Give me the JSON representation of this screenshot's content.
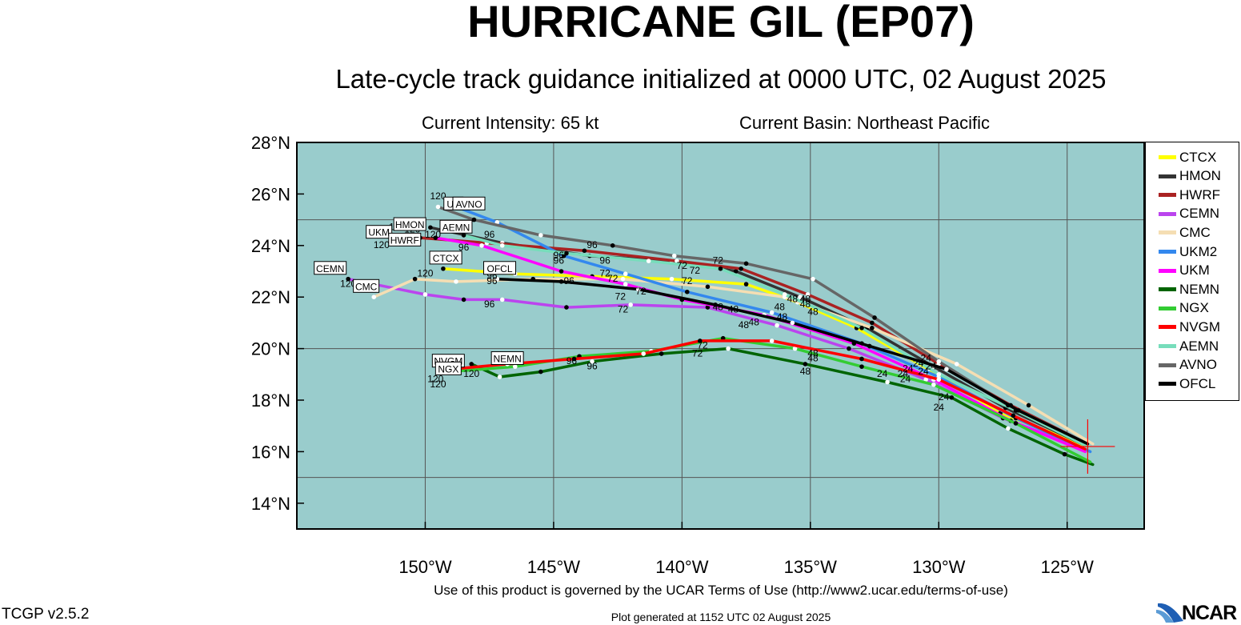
{
  "header": {
    "title": "HURRICANE GIL (EP07)",
    "subtitle": "Late-cycle track guidance initialized at 0000 UTC, 02 August 2025",
    "intensity": "Current Intensity: 65 kt",
    "basin": "Current Basin: Northeast Pacific"
  },
  "map": {
    "lon_range": [
      -155,
      -122
    ],
    "lat_range": [
      13,
      28
    ],
    "lat_ticks": [
      {
        "v": 28,
        "label": "28°N"
      },
      {
        "v": 26,
        "label": "26°N"
      },
      {
        "v": 24,
        "label": "24°N"
      },
      {
        "v": 22,
        "label": "22°N"
      },
      {
        "v": 20,
        "label": "20°N"
      },
      {
        "v": 18,
        "label": "18°N"
      },
      {
        "v": 16,
        "label": "16°N"
      },
      {
        "v": 14,
        "label": "14°N"
      }
    ],
    "lon_ticks": [
      {
        "v": -150,
        "label": "150°W"
      },
      {
        "v": -145,
        "label": "145°W"
      },
      {
        "v": -140,
        "label": "140°W"
      },
      {
        "v": -135,
        "label": "135°W"
      },
      {
        "v": -130,
        "label": "130°W"
      },
      {
        "v": -125,
        "label": "125°W"
      }
    ],
    "grid_lons": [
      -150,
      -145,
      -140,
      -135,
      -130,
      -125
    ],
    "grid_lats": [
      25,
      20,
      15
    ],
    "ocean_color": "#99cccc",
    "storm_position": {
      "lon": -124.2,
      "lat": 16.2
    }
  },
  "chart_data": {
    "type": "map-tracks",
    "series": [
      {
        "name": "CTCX",
        "color": "#ffff00",
        "label": "CTCX",
        "points": [
          [
            -124.2,
            16.2
          ],
          [
            -127.6,
            17.5
          ],
          [
            -130.4,
            19.2
          ],
          [
            -133.2,
            20.8
          ],
          [
            -135.5,
            21.8
          ],
          [
            -137.5,
            22.5
          ],
          [
            -140.4,
            22.7
          ],
          [
            -143.5,
            22.8
          ],
          [
            -146.5,
            22.9
          ],
          [
            -149.3,
            23.1
          ]
        ]
      },
      {
        "name": "HMON",
        "color": "#333333",
        "label": "HMON",
        "points": [
          [
            -124.2,
            16.2
          ],
          [
            -127.4,
            17.7
          ],
          [
            -130.2,
            19.3
          ],
          [
            -132.8,
            20.8
          ],
          [
            -135.4,
            22.0
          ],
          [
            -137.9,
            23.0
          ],
          [
            -140.4,
            23.4
          ],
          [
            -143.6,
            23.6
          ],
          [
            -147.0,
            24.1
          ],
          [
            -149.8,
            24.7
          ]
        ]
      },
      {
        "name": "HWRF",
        "color": "#aa2222",
        "label": "HWRF",
        "points": [
          [
            -124.2,
            16.3
          ],
          [
            -127.2,
            17.8
          ],
          [
            -130.0,
            19.4
          ],
          [
            -132.6,
            21.0
          ],
          [
            -135.1,
            22.1
          ],
          [
            -137.7,
            23.1
          ],
          [
            -140.2,
            23.4
          ],
          [
            -143.8,
            23.8
          ],
          [
            -147.6,
            24.1
          ],
          [
            -150.2,
            24.3
          ]
        ]
      },
      {
        "name": "CEMN",
        "color": "#bb44ee",
        "label": "CEMN",
        "points": [
          [
            -124.3,
            16.1
          ],
          [
            -127.5,
            17.3
          ],
          [
            -130.5,
            18.8
          ],
          [
            -133.5,
            20.0
          ],
          [
            -136.3,
            20.9
          ],
          [
            -139.0,
            21.6
          ],
          [
            -142.0,
            21.7
          ],
          [
            -144.5,
            21.6
          ],
          [
            -147.0,
            21.9
          ],
          [
            -148.5,
            21.9
          ],
          [
            -150.0,
            22.1
          ],
          [
            -153.0,
            22.7
          ]
        ]
      },
      {
        "name": "CMC",
        "color": "#f5deb3",
        "label": "CMC",
        "points": [
          [
            -124.0,
            16.3
          ],
          [
            -126.5,
            17.8
          ],
          [
            -129.3,
            19.4
          ],
          [
            -132.6,
            20.8
          ],
          [
            -136.0,
            22.0
          ],
          [
            -139.0,
            22.4
          ],
          [
            -142.3,
            22.7
          ],
          [
            -145.8,
            22.7
          ],
          [
            -148.8,
            22.6
          ],
          [
            -150.4,
            22.7
          ],
          [
            -152.0,
            22.0
          ]
        ]
      },
      {
        "name": "UKM2",
        "color": "#3388ee",
        "label": "UKM2",
        "points": [
          [
            -124.1,
            16.0
          ],
          [
            -127.0,
            17.3
          ],
          [
            -130.0,
            18.9
          ],
          [
            -133.0,
            20.2
          ],
          [
            -136.5,
            21.4
          ],
          [
            -139.8,
            22.2
          ],
          [
            -142.2,
            22.9
          ],
          [
            -144.6,
            23.6
          ],
          [
            -147.2,
            24.9
          ],
          [
            -148.8,
            25.5
          ]
        ]
      },
      {
        "name": "UKM",
        "color": "#ff00ff",
        "label": "UKM",
        "points": [
          [
            -124.3,
            16.0
          ],
          [
            -127.2,
            17.2
          ],
          [
            -130.2,
            18.8
          ],
          [
            -133.3,
            20.2
          ],
          [
            -136.8,
            21.3
          ],
          [
            -140.0,
            21.9
          ],
          [
            -142.2,
            22.5
          ],
          [
            -144.7,
            23.0
          ],
          [
            -147.8,
            24.0
          ],
          [
            -149.6,
            24.3
          ]
        ]
      },
      {
        "name": "NEMN",
        "color": "#006400",
        "label": "NEMN",
        "points": [
          [
            -124.0,
            15.5
          ],
          [
            -125.1,
            15.9
          ],
          [
            -127.3,
            16.9
          ],
          [
            -129.5,
            18.1
          ],
          [
            -132.0,
            18.7
          ],
          [
            -135.2,
            19.4
          ],
          [
            -138.2,
            20.0
          ],
          [
            -140.8,
            19.8
          ],
          [
            -143.5,
            19.5
          ],
          [
            -145.5,
            19.1
          ],
          [
            -147.1,
            18.9
          ],
          [
            -148.2,
            19.4
          ]
        ]
      },
      {
        "name": "NGX",
        "color": "#33cc33",
        "label": "NGX",
        "points": [
          [
            -124.1,
            15.6
          ],
          [
            -127.0,
            17.1
          ],
          [
            -130.2,
            18.6
          ],
          [
            -133.0,
            19.3
          ],
          [
            -135.6,
            20.0
          ],
          [
            -138.4,
            20.4
          ],
          [
            -141.2,
            19.9
          ],
          [
            -144.0,
            19.7
          ],
          [
            -146.5,
            19.3
          ],
          [
            -149.1,
            19.1
          ]
        ]
      },
      {
        "name": "NVGM",
        "color": "#ff0000",
        "label": "NVGM",
        "points": [
          [
            -124.3,
            16.1
          ],
          [
            -127.1,
            17.4
          ],
          [
            -130.0,
            18.8
          ],
          [
            -133.0,
            19.6
          ],
          [
            -136.5,
            20.3
          ],
          [
            -139.3,
            20.3
          ],
          [
            -141.5,
            19.8
          ],
          [
            -144.2,
            19.6
          ],
          [
            -146.8,
            19.4
          ],
          [
            -149.0,
            19.2
          ]
        ]
      },
      {
        "name": "AEMN",
        "color": "#77ddbb",
        "label": "AEMN",
        "points": [
          [
            -124.2,
            16.2
          ],
          [
            -127.0,
            17.6
          ],
          [
            -130.0,
            19.0
          ],
          [
            -133.0,
            20.8
          ],
          [
            -136.0,
            22.1
          ],
          [
            -138.5,
            23.1
          ],
          [
            -141.3,
            23.4
          ],
          [
            -144.5,
            23.7
          ],
          [
            -147.0,
            24.0
          ],
          [
            -148.5,
            24.4
          ]
        ]
      },
      {
        "name": "AVNO",
        "color": "#666666",
        "label": "AVNO",
        "points": [
          [
            -124.2,
            16.3
          ],
          [
            -127.3,
            17.8
          ],
          [
            -130.0,
            19.5
          ],
          [
            -132.5,
            21.2
          ],
          [
            -134.9,
            22.7
          ],
          [
            -137.5,
            23.3
          ],
          [
            -140.3,
            23.6
          ],
          [
            -142.7,
            24.0
          ],
          [
            -145.5,
            24.4
          ],
          [
            -148.1,
            25.0
          ],
          [
            -149.5,
            25.5
          ]
        ]
      },
      {
        "name": "OFCL",
        "color": "#000000",
        "label": "OFCL",
        "points": [
          [
            -124.2,
            16.3
          ],
          [
            -126.9,
            17.6
          ],
          [
            -129.7,
            19.2
          ],
          [
            -132.7,
            20.1
          ],
          [
            -135.7,
            21.0
          ],
          [
            -138.7,
            21.7
          ],
          [
            -141.7,
            22.3
          ],
          [
            -144.7,
            22.6
          ],
          [
            -147.2,
            22.7
          ]
        ]
      }
    ],
    "hour_labels": [
      {
        "t": "120",
        "lon": -149.5,
        "lat": 25.8
      },
      {
        "t": "120",
        "lon": -150.5,
        "lat": 24.5
      },
      {
        "t": "120",
        "lon": -149.7,
        "lat": 24.3
      },
      {
        "t": "120",
        "lon": -151.1,
        "lat": 24.6
      },
      {
        "t": "120",
        "lon": -151.7,
        "lat": 23.9
      },
      {
        "t": "120",
        "lon": -150.0,
        "lat": 22.8
      },
      {
        "t": "120",
        "lon": -153.0,
        "lat": 22.4
      },
      {
        "t": "120",
        "lon": -149.6,
        "lat": 18.7
      },
      {
        "t": "120",
        "lon": -149.5,
        "lat": 18.5
      },
      {
        "t": "120",
        "lon": -148.2,
        "lat": 18.9
      },
      {
        "t": "96",
        "lon": -147.5,
        "lat": 24.3
      },
      {
        "t": "96",
        "lon": -148.5,
        "lat": 23.8
      },
      {
        "t": "96",
        "lon": -143.5,
        "lat": 23.9
      },
      {
        "t": "96",
        "lon": -144.8,
        "lat": 23.5
      },
      {
        "t": "96",
        "lon": -143.0,
        "lat": 23.3
      },
      {
        "t": "96",
        "lon": -144.8,
        "lat": 23.3
      },
      {
        "t": "96",
        "lon": -147.4,
        "lat": 22.7
      },
      {
        "t": "96",
        "lon": -147.4,
        "lat": 22.5
      },
      {
        "t": "96",
        "lon": -144.4,
        "lat": 22.5
      },
      {
        "t": "96",
        "lon": -147.5,
        "lat": 21.6
      },
      {
        "t": "96",
        "lon": -144.3,
        "lat": 19.4
      },
      {
        "t": "96",
        "lon": -143.5,
        "lat": 19.2
      },
      {
        "t": "72",
        "lon": -138.6,
        "lat": 23.3
      },
      {
        "t": "72",
        "lon": -140.0,
        "lat": 23.1
      },
      {
        "t": "72",
        "lon": -139.5,
        "lat": 22.9
      },
      {
        "t": "72",
        "lon": -143.0,
        "lat": 22.8
      },
      {
        "t": "72",
        "lon": -142.7,
        "lat": 22.6
      },
      {
        "t": "72",
        "lon": -139.8,
        "lat": 22.5
      },
      {
        "t": "72",
        "lon": -141.6,
        "lat": 22.1
      },
      {
        "t": "72",
        "lon": -142.4,
        "lat": 21.9
      },
      {
        "t": "72",
        "lon": -142.3,
        "lat": 21.4
      },
      {
        "t": "72",
        "lon": -139.2,
        "lat": 20.0
      },
      {
        "t": "72",
        "lon": -139.4,
        "lat": 19.7
      },
      {
        "t": "48",
        "lon": -135.2,
        "lat": 21.8
      },
      {
        "t": "48",
        "lon": -135.7,
        "lat": 21.8
      },
      {
        "t": "48",
        "lon": -135.2,
        "lat": 21.6
      },
      {
        "t": "48",
        "lon": -136.2,
        "lat": 21.5
      },
      {
        "t": "48",
        "lon": -134.9,
        "lat": 21.3
      },
      {
        "t": "48",
        "lon": -138.6,
        "lat": 21.5
      },
      {
        "t": "48",
        "lon": -138.0,
        "lat": 21.4
      },
      {
        "t": "48",
        "lon": -136.1,
        "lat": 21.1
      },
      {
        "t": "48",
        "lon": -137.2,
        "lat": 20.9
      },
      {
        "t": "48",
        "lon": -137.6,
        "lat": 20.8
      },
      {
        "t": "48",
        "lon": -134.9,
        "lat": 19.7
      },
      {
        "t": "48",
        "lon": -134.9,
        "lat": 19.5
      },
      {
        "t": "48",
        "lon": -135.2,
        "lat": 19.0
      },
      {
        "t": "24",
        "lon": -130.5,
        "lat": 19.5
      },
      {
        "t": "24",
        "lon": -130.8,
        "lat": 19.3
      },
      {
        "t": "24",
        "lon": -130.3,
        "lat": 19.2
      },
      {
        "t": "24",
        "lon": -131.2,
        "lat": 19.1
      },
      {
        "t": "24",
        "lon": -130.6,
        "lat": 19.0
      },
      {
        "t": "24",
        "lon": -131.4,
        "lat": 18.9
      },
      {
        "t": "24",
        "lon": -132.2,
        "lat": 18.9
      },
      {
        "t": "24",
        "lon": -131.3,
        "lat": 18.7
      },
      {
        "t": "24",
        "lon": -129.8,
        "lat": 18.0
      },
      {
        "t": "24",
        "lon": -130.0,
        "lat": 17.6
      }
    ],
    "model_boxes": [
      {
        "t": "UK",
        "lon": -148.9,
        "lat": 25.6
      },
      {
        "t": "AVNO",
        "lon": -148.3,
        "lat": 25.6
      },
      {
        "t": "HMON",
        "lon": -150.6,
        "lat": 24.8
      },
      {
        "t": "UKM",
        "lon": -151.8,
        "lat": 24.5
      },
      {
        "t": "AEMN",
        "lon": -148.8,
        "lat": 24.7
      },
      {
        "t": "HWRF",
        "lon": -150.8,
        "lat": 24.2
      },
      {
        "t": "CTCX",
        "lon": -149.2,
        "lat": 23.5
      },
      {
        "t": "OFCL",
        "lon": -147.1,
        "lat": 23.1
      },
      {
        "t": "CEMN",
        "lon": -153.7,
        "lat": 23.1
      },
      {
        "t": "CMC",
        "lon": -152.3,
        "lat": 22.4
      },
      {
        "t": "NVGM",
        "lon": -149.1,
        "lat": 19.5
      },
      {
        "t": "NEMN",
        "lon": -146.8,
        "lat": 19.6
      },
      {
        "t": "NGX",
        "lon": -149.1,
        "lat": 19.2
      }
    ]
  },
  "legend": {
    "items": [
      {
        "label": "CTCX",
        "color": "#ffff00"
      },
      {
        "label": "HMON",
        "color": "#333333"
      },
      {
        "label": "HWRF",
        "color": "#aa2222"
      },
      {
        "label": "CEMN",
        "color": "#bb44ee"
      },
      {
        "label": "CMC",
        "color": "#f5deb3"
      },
      {
        "label": "UKM2",
        "color": "#3388ee"
      },
      {
        "label": "UKM",
        "color": "#ff00ff"
      },
      {
        "label": "NEMN",
        "color": "#006400"
      },
      {
        "label": "NGX",
        "color": "#33cc33"
      },
      {
        "label": "NVGM",
        "color": "#ff0000"
      },
      {
        "label": "AEMN",
        "color": "#77ddbb"
      },
      {
        "label": "AVNO",
        "color": "#666666"
      },
      {
        "label": "OFCL",
        "color": "#000000"
      }
    ]
  },
  "footer": {
    "terms": "Use of this product is governed by the UCAR Terms of Use (http://www2.ucar.edu/terms-of-use)",
    "version": "TCGP v2.5.2",
    "generated": "Plot generated at 1152 UTC   02 August 2025",
    "logo": "NCAR"
  }
}
